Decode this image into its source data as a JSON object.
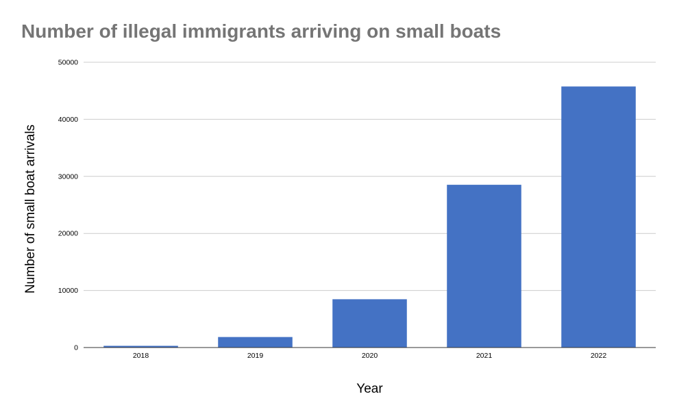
{
  "chart_data": {
    "type": "bar",
    "title": "Number of illegal immigrants arriving on small boats",
    "xlabel": "Year",
    "ylabel": "Number of small boat arrivals",
    "categories": [
      "2018",
      "2019",
      "2020",
      "2021",
      "2022"
    ],
    "values": [
      299,
      1843,
      8466,
      28526,
      45755
    ],
    "ylim": [
      0,
      50000
    ],
    "yticks": [
      "0",
      "10000",
      "20000",
      "30000",
      "40000",
      "50000"
    ],
    "grid": true,
    "legend": "none",
    "bar_color": "#4472c4",
    "grid_color": "#cccccc",
    "axis_color": "#333333",
    "title_color": "#757575"
  }
}
